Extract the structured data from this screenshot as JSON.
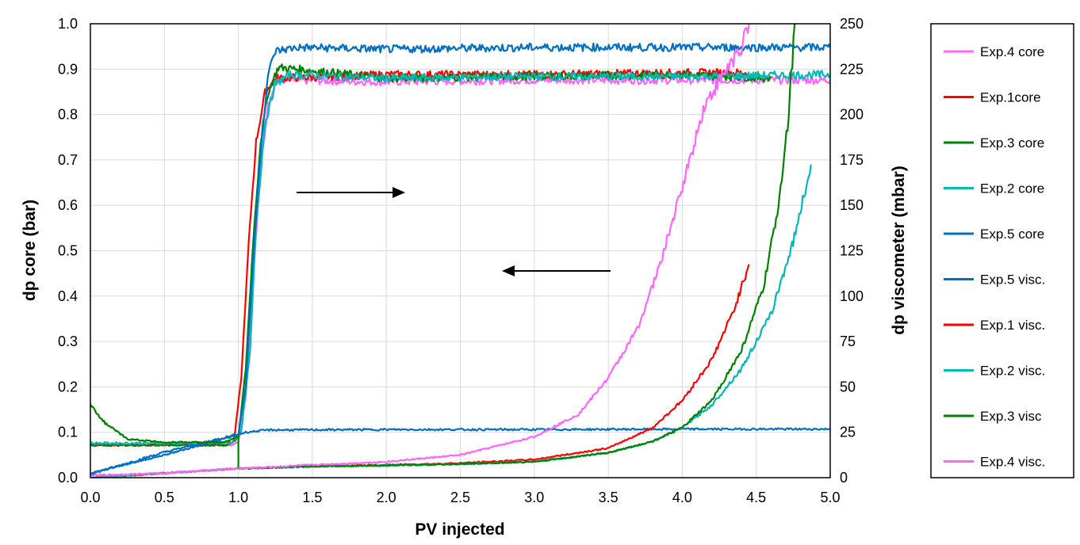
{
  "chart_data": {
    "type": "line",
    "xlabel": "PV injected",
    "ylabel_left": "dp core (bar)",
    "ylabel_right": "dp viscometer (mbar)",
    "xlim": [
      0,
      5
    ],
    "ylim_left": [
      0,
      1
    ],
    "ylim_right": [
      0,
      250
    ],
    "x_ticks": [
      "0.0",
      "0.5",
      "1.0",
      "1.5",
      "2.0",
      "2.5",
      "3.0",
      "3.5",
      "4.0",
      "4.5",
      "5.0"
    ],
    "y_left_ticks": [
      "0.0",
      "0.1",
      "0.2",
      "0.3",
      "0.4",
      "0.5",
      "0.6",
      "0.7",
      "0.8",
      "0.9",
      "1.0"
    ],
    "y_right_ticks": [
      "0",
      "25",
      "50",
      "75",
      "100",
      "125",
      "150",
      "175",
      "200",
      "225",
      "250"
    ],
    "grid": true,
    "legend_position": "right",
    "annotations": [
      {
        "type": "arrow",
        "direction": "right",
        "meaning": "curves read on right axis"
      },
      {
        "type": "arrow",
        "direction": "left",
        "meaning": "curves read on left axis"
      }
    ],
    "series": [
      {
        "name": "Exp.4 core",
        "color": "#FF66FF",
        "axis": "right",
        "points": [
          [
            0,
            18
          ],
          [
            0.5,
            18
          ],
          [
            0.95,
            18
          ],
          [
            1.0,
            20
          ],
          [
            1.05,
            45
          ],
          [
            1.1,
            110
          ],
          [
            1.15,
            170
          ],
          [
            1.2,
            205
          ],
          [
            1.25,
            218
          ],
          [
            1.3,
            219
          ],
          [
            2.0,
            218
          ],
          [
            3.0,
            219
          ],
          [
            4.0,
            219
          ],
          [
            5.0,
            219
          ]
        ]
      },
      {
        "name": "Exp.1core",
        "color": "#FF0000",
        "axis": "right",
        "points": [
          [
            0,
            18
          ],
          [
            0.5,
            18
          ],
          [
            0.9,
            18
          ],
          [
            0.97,
            20
          ],
          [
            1.02,
            55
          ],
          [
            1.07,
            130
          ],
          [
            1.12,
            185
          ],
          [
            1.18,
            212
          ],
          [
            1.25,
            220
          ],
          [
            2.0,
            222
          ],
          [
            3.0,
            222
          ],
          [
            4.0,
            223
          ],
          [
            4.45,
            223
          ]
        ]
      },
      {
        "name": "Exp.3 core",
        "color": "#008000",
        "axis": "right",
        "points": [
          [
            0,
            18
          ],
          [
            0.5,
            18
          ],
          [
            0.93,
            18
          ],
          [
            1.0,
            22
          ],
          [
            1.05,
            60
          ],
          [
            1.1,
            130
          ],
          [
            1.15,
            185
          ],
          [
            1.2,
            212
          ],
          [
            1.27,
            226
          ],
          [
            1.4,
            225
          ],
          [
            2.0,
            220
          ],
          [
            3.0,
            221
          ],
          [
            4.0,
            222
          ],
          [
            4.6,
            220
          ]
        ]
      },
      {
        "name": "Exp.2 core",
        "color": "#00B8B8",
        "axis": "right",
        "points": [
          [
            0,
            19
          ],
          [
            0.5,
            19
          ],
          [
            0.95,
            19
          ],
          [
            1.02,
            25
          ],
          [
            1.08,
            70
          ],
          [
            1.12,
            140
          ],
          [
            1.18,
            195
          ],
          [
            1.25,
            217
          ],
          [
            1.35,
            222
          ],
          [
            2.0,
            220
          ],
          [
            3.0,
            221
          ],
          [
            4.0,
            221
          ],
          [
            5.0,
            222
          ]
        ]
      },
      {
        "name": "Exp.5 core",
        "color": "#0070C0",
        "axis": "right",
        "points": [
          [
            0,
            2
          ],
          [
            0.5,
            14
          ],
          [
            1.0,
            24
          ],
          [
            1.05,
            50
          ],
          [
            1.1,
            120
          ],
          [
            1.15,
            180
          ],
          [
            1.2,
            222
          ],
          [
            1.25,
            235
          ],
          [
            1.4,
            237
          ],
          [
            2.0,
            236
          ],
          [
            3.0,
            237
          ],
          [
            4.0,
            237
          ],
          [
            5.0,
            237
          ]
        ]
      },
      {
        "name": "Exp.5 visc.",
        "color": "#0070C0",
        "axis": "left",
        "points": [
          [
            0,
            0.01
          ],
          [
            0.5,
            0.05
          ],
          [
            0.95,
            0.09
          ],
          [
            1.05,
            0.1
          ],
          [
            1.2,
            0.105
          ],
          [
            2.0,
            0.106
          ],
          [
            3.0,
            0.106
          ],
          [
            4.0,
            0.107
          ],
          [
            5.0,
            0.107
          ]
        ]
      },
      {
        "name": "Exp.1 visc.",
        "color": "#FF0000",
        "axis": "left",
        "points": [
          [
            0,
            0
          ],
          [
            0.5,
            0.01
          ],
          [
            1.0,
            0.02
          ],
          [
            1.5,
            0.025
          ],
          [
            2.0,
            0.028
          ],
          [
            2.5,
            0.032
          ],
          [
            3.0,
            0.04
          ],
          [
            3.5,
            0.065
          ],
          [
            3.8,
            0.11
          ],
          [
            4.0,
            0.17
          ],
          [
            4.2,
            0.26
          ],
          [
            4.35,
            0.37
          ],
          [
            4.45,
            0.47
          ]
        ]
      },
      {
        "name": "Exp.2 visc.",
        "color": "#00B8B8",
        "axis": "left",
        "points": [
          [
            0,
            0
          ],
          [
            0.5,
            0.01
          ],
          [
            1.0,
            0.02
          ],
          [
            1.5,
            0.025
          ],
          [
            2.0,
            0.027
          ],
          [
            2.5,
            0.03
          ],
          [
            3.0,
            0.035
          ],
          [
            3.5,
            0.055
          ],
          [
            3.8,
            0.08
          ],
          [
            4.0,
            0.11
          ],
          [
            4.2,
            0.16
          ],
          [
            4.4,
            0.24
          ],
          [
            4.6,
            0.36
          ],
          [
            4.75,
            0.52
          ],
          [
            4.87,
            0.69
          ]
        ]
      },
      {
        "name": "Exp.3 visc",
        "color": "#008000",
        "axis": "left",
        "points": [
          [
            0,
            0.16
          ],
          [
            0.1,
            0.12
          ],
          [
            0.25,
            0.085
          ],
          [
            0.5,
            0.078
          ],
          [
            0.9,
            0.078
          ],
          [
            1.0,
            0.09
          ],
          [
            1.0,
            0.02
          ],
          [
            1.5,
            0.025
          ],
          [
            2.0,
            0.027
          ],
          [
            2.5,
            0.03
          ],
          [
            3.0,
            0.035
          ],
          [
            3.5,
            0.055
          ],
          [
            3.8,
            0.08
          ],
          [
            4.0,
            0.11
          ],
          [
            4.2,
            0.17
          ],
          [
            4.4,
            0.28
          ],
          [
            4.55,
            0.42
          ],
          [
            4.65,
            0.6
          ],
          [
            4.72,
            0.8
          ],
          [
            4.76,
            1.0
          ]
        ]
      },
      {
        "name": "Exp.4 visc.",
        "color": "#FF66FF",
        "axis": "left",
        "points": [
          [
            0,
            0.005
          ],
          [
            0.5,
            0.01
          ],
          [
            1.0,
            0.02
          ],
          [
            1.5,
            0.028
          ],
          [
            2.0,
            0.035
          ],
          [
            2.5,
            0.05
          ],
          [
            3.0,
            0.09
          ],
          [
            3.3,
            0.14
          ],
          [
            3.5,
            0.22
          ],
          [
            3.7,
            0.33
          ],
          [
            3.85,
            0.47
          ],
          [
            4.0,
            0.64
          ],
          [
            4.15,
            0.82
          ],
          [
            4.3,
            0.9
          ],
          [
            4.4,
            0.95
          ],
          [
            4.46,
            1.0
          ]
        ]
      }
    ]
  }
}
